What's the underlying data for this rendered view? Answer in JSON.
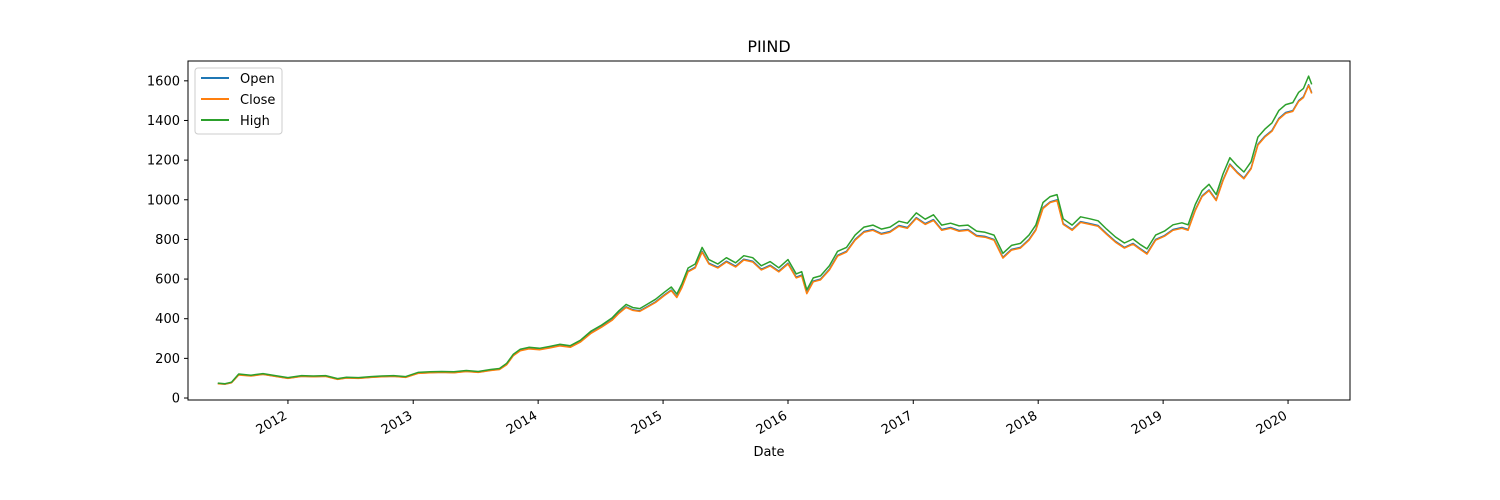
{
  "chart_data": {
    "type": "line",
    "title": "PIIND",
    "xlabel": "Date",
    "ylabel": "",
    "xlim": [
      "2011-03-15",
      "2020-06-30"
    ],
    "ylim": [
      -10,
      1700
    ],
    "x_ticks": [
      "2012-01-01",
      "2013-01-01",
      "2014-01-01",
      "2015-01-01",
      "2016-01-01",
      "2017-01-01",
      "2018-01-01",
      "2019-01-01",
      "2020-01-01"
    ],
    "x_tick_labels": [
      "2012",
      "2013",
      "2014",
      "2015",
      "2016",
      "2017",
      "2018",
      "2019",
      "2020"
    ],
    "y_ticks": [
      0,
      200,
      400,
      600,
      800,
      1000,
      1200,
      1400,
      1600
    ],
    "y_tick_labels": [
      "0",
      "200",
      "400",
      "600",
      "800",
      "1000",
      "1200",
      "1400",
      "1600"
    ],
    "grid": false,
    "legend": "upper-left",
    "x": [
      "2011-06-10",
      "2011-07-01",
      "2011-07-20",
      "2011-08-10",
      "2011-09-15",
      "2011-10-20",
      "2011-11-25",
      "2012-01-01",
      "2012-02-10",
      "2012-03-15",
      "2012-04-20",
      "2012-05-25",
      "2012-06-20",
      "2012-07-25",
      "2012-08-30",
      "2012-10-01",
      "2012-11-05",
      "2012-12-10",
      "2013-01-15",
      "2013-02-20",
      "2013-03-25",
      "2013-04-30",
      "2013-06-05",
      "2013-07-10",
      "2013-08-15",
      "2013-09-10",
      "2013-10-01",
      "2013-10-20",
      "2013-11-10",
      "2013-12-05",
      "2014-01-05",
      "2014-02-05",
      "2014-03-05",
      "2014-04-05",
      "2014-05-05",
      "2014-06-05",
      "2014-07-05",
      "2014-08-05",
      "2014-08-25",
      "2014-09-15",
      "2014-10-05",
      "2014-10-25",
      "2014-11-15",
      "2014-12-10",
      "2015-01-05",
      "2015-01-25",
      "2015-02-10",
      "2015-02-25",
      "2015-03-15",
      "2015-04-05",
      "2015-04-25",
      "2015-05-15",
      "2015-06-10",
      "2015-07-05",
      "2015-08-01",
      "2015-08-25",
      "2015-09-20",
      "2015-10-15",
      "2015-11-10",
      "2015-12-05",
      "2016-01-01",
      "2016-01-25",
      "2016-02-10",
      "2016-02-25",
      "2016-03-15",
      "2016-04-05",
      "2016-05-01",
      "2016-05-25",
      "2016-06-20",
      "2016-07-15",
      "2016-08-10",
      "2016-09-05",
      "2016-09-30",
      "2016-10-25",
      "2016-11-20",
      "2016-12-15",
      "2017-01-10",
      "2017-02-05",
      "2017-03-01",
      "2017-03-25",
      "2017-04-20",
      "2017-05-15",
      "2017-06-10",
      "2017-07-05",
      "2017-07-30",
      "2017-08-25",
      "2017-09-20",
      "2017-10-15",
      "2017-11-10",
      "2017-12-05",
      "2017-12-25",
      "2018-01-15",
      "2018-02-05",
      "2018-02-25",
      "2018-03-15",
      "2018-04-10",
      "2018-05-05",
      "2018-06-01",
      "2018-06-25",
      "2018-07-20",
      "2018-08-15",
      "2018-09-10",
      "2018-10-05",
      "2018-10-25",
      "2018-11-15",
      "2018-12-10",
      "2019-01-05",
      "2019-01-30",
      "2019-02-25",
      "2019-03-15",
      "2019-04-05",
      "2019-04-25",
      "2019-05-15",
      "2019-06-05",
      "2019-06-25",
      "2019-07-15",
      "2019-08-05",
      "2019-08-25",
      "2019-09-15",
      "2019-10-05",
      "2019-10-25",
      "2019-11-15",
      "2019-12-05",
      "2019-12-25",
      "2020-01-15",
      "2020-02-01",
      "2020-02-15",
      "2020-03-01",
      "2020-03-10"
    ],
    "series": [
      {
        "name": "Open",
        "color": "#1f77b4",
        "values": [
          73,
          70,
          78,
          118,
          112,
          120,
          110,
          100,
          110,
          108,
          110,
          95,
          102,
          100,
          105,
          108,
          110,
          105,
          125,
          128,
          130,
          128,
          135,
          130,
          140,
          145,
          170,
          215,
          240,
          250,
          245,
          255,
          265,
          258,
          285,
          330,
          360,
          395,
          430,
          460,
          445,
          440,
          460,
          485,
          520,
          545,
          510,
          560,
          640,
          660,
          740,
          680,
          660,
          690,
          665,
          700,
          690,
          650,
          670,
          640,
          680,
          610,
          620,
          530,
          590,
          600,
          650,
          720,
          740,
          800,
          840,
          850,
          830,
          840,
          870,
          860,
          910,
          880,
          900,
          850,
          860,
          845,
          850,
          820,
          815,
          800,
          710,
          750,
          760,
          800,
          850,
          960,
          990,
          1000,
          880,
          850,
          890,
          880,
          870,
          830,
          790,
          760,
          780,
          755,
          730,
          800,
          820,
          850,
          860,
          850,
          950,
          1020,
          1050,
          1000,
          1100,
          1180,
          1140,
          1110,
          1160,
          1280,
          1320,
          1350,
          1410,
          1440,
          1450,
          1500,
          1520,
          1580,
          1540
        ]
      },
      {
        "name": "Close",
        "color": "#ff7f0e",
        "values": [
          72,
          70,
          77,
          116,
          111,
          119,
          109,
          99,
          109,
          107,
          109,
          94,
          101,
          99,
          104,
          107,
          109,
          104,
          124,
          127,
          129,
          127,
          134,
          129,
          139,
          144,
          168,
          213,
          238,
          248,
          243,
          253,
          263,
          256,
          283,
          327,
          357,
          392,
          427,
          457,
          442,
          437,
          457,
          482,
          517,
          542,
          507,
          557,
          636,
          656,
          736,
          676,
          656,
          686,
          661,
          696,
          686,
          646,
          666,
          636,
          676,
          606,
          616,
          526,
          586,
          596,
          646,
          716,
          736,
          796,
          836,
          846,
          826,
          836,
          866,
          856,
          906,
          876,
          896,
          846,
          856,
          841,
          846,
          816,
          811,
          796,
          706,
          746,
          756,
          796,
          846,
          956,
          986,
          996,
          876,
          846,
          886,
          876,
          866,
          826,
          786,
          756,
          776,
          751,
          726,
          796,
          816,
          846,
          856,
          846,
          946,
          1016,
          1046,
          996,
          1096,
          1176,
          1136,
          1106,
          1156,
          1276,
          1316,
          1346,
          1406,
          1436,
          1446,
          1496,
          1516,
          1576,
          1536
        ]
      },
      {
        "name": "High",
        "color": "#2ca02c",
        "values": [
          75,
          72,
          80,
          121,
          115,
          123,
          113,
          103,
          113,
          111,
          113,
          98,
          105,
          103,
          108,
          111,
          113,
          108,
          129,
          132,
          134,
          132,
          139,
          134,
          144,
          149,
          175,
          220,
          246,
          256,
          251,
          261,
          271,
          264,
          292,
          338,
          368,
          404,
          440,
          472,
          456,
          451,
          472,
          498,
          534,
          560,
          524,
          576,
          656,
          676,
          760,
          698,
          676,
          708,
          682,
          718,
          708,
          667,
          688,
          657,
          698,
          626,
          637,
          546,
          606,
          616,
          667,
          740,
          760,
          822,
          862,
          872,
          852,
          862,
          892,
          882,
          934,
          902,
          924,
          872,
          882,
          868,
          872,
          842,
          836,
          822,
          730,
          770,
          780,
          822,
          872,
          986,
          1016,
          1026,
          904,
          872,
          914,
          904,
          894,
          852,
          812,
          782,
          802,
          776,
          752,
          822,
          842,
          874,
          884,
          874,
          976,
          1046,
          1078,
          1026,
          1130,
          1212,
          1172,
          1140,
          1192,
          1316,
          1356,
          1388,
          1450,
          1480,
          1490,
          1542,
          1562,
          1624,
          1582
        ]
      }
    ]
  }
}
